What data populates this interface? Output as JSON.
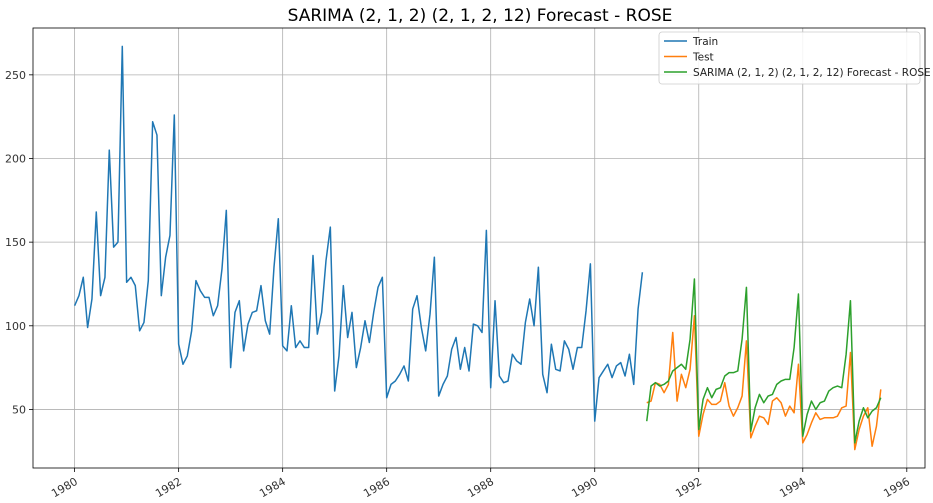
{
  "chart_data": {
    "type": "line",
    "title": "SARIMA (2, 1, 2) (2, 1, 2, 12) Forecast - ROSE",
    "xlabel": "",
    "ylabel": "",
    "xlim": [
      1979.2,
      1996.35
    ],
    "ylim": [
      15,
      278
    ],
    "x_ticks": [
      1980,
      1982,
      1984,
      1986,
      1988,
      1990,
      1992,
      1994,
      1996
    ],
    "x_tick_labels": [
      "1980",
      "1982",
      "1984",
      "1986",
      "1988",
      "1990",
      "1992",
      "1994",
      "1996"
    ],
    "y_ticks": [
      50,
      100,
      150,
      200,
      250
    ],
    "y_tick_labels": [
      "50",
      "100",
      "150",
      "200",
      "250"
    ],
    "grid": true,
    "legend_position": "top-right",
    "series": [
      {
        "name": "Train",
        "color": "#1f77b4",
        "start_year": 1980,
        "values": [
          112,
          118,
          129,
          99,
          116,
          168,
          118,
          129,
          205,
          147,
          150,
          267,
          126,
          129,
          124,
          97,
          102,
          127,
          222,
          214,
          118,
          141,
          154,
          226,
          89,
          77,
          82,
          97,
          127,
          121,
          117,
          117,
          106,
          112,
          134,
          169,
          75,
          108,
          115,
          85,
          101,
          108,
          109,
          124,
          103,
          95,
          135,
          164,
          88,
          85,
          112,
          87,
          91,
          87,
          87,
          142,
          95,
          108,
          139,
          159,
          61,
          82,
          124,
          93,
          108,
          75,
          87,
          103,
          90,
          108,
          123,
          129,
          57,
          65,
          67,
          71,
          76,
          67,
          110,
          118,
          99,
          85,
          107,
          141,
          58,
          65,
          70,
          86,
          93,
          74,
          87,
          73,
          101,
          100,
          96,
          157,
          63,
          115,
          70,
          66,
          67,
          83,
          79,
          77,
          102,
          116,
          100,
          135,
          71,
          60,
          89,
          74,
          73,
          91,
          86,
          74,
          87,
          87,
          109,
          137,
          43,
          69,
          73,
          77,
          69,
          76,
          78,
          70,
          83,
          65,
          110,
          132
        ]
      },
      {
        "name": "Test",
        "color": "#ff7f0e",
        "start_year": 1991,
        "values": [
          54,
          55,
          66,
          65,
          60,
          65,
          96,
          55,
          71,
          63,
          74,
          106,
          34,
          47,
          56,
          53,
          53,
          55,
          66,
          52,
          46,
          51,
          58,
          91,
          33,
          40,
          46,
          45,
          41,
          55,
          57,
          54,
          46,
          52,
          48,
          77,
          30,
          35,
          42,
          48,
          44,
          45,
          45,
          45,
          46,
          51,
          52,
          84,
          26,
          38,
          46,
          51,
          28,
          40,
          62
        ]
      },
      {
        "name": "SARIMA (2, 1, 2) (2, 1, 2, 12) Forecast - ROSE",
        "color": "#2ca02c",
        "start_year": 1991,
        "values": [
          43,
          64,
          66,
          64,
          65,
          67,
          73,
          75,
          77,
          74,
          92,
          128,
          38,
          56,
          63,
          57,
          62,
          63,
          70,
          72,
          72,
          73,
          92,
          123,
          37,
          51,
          59,
          54,
          58,
          59,
          65,
          67,
          68,
          68,
          87,
          119,
          34,
          47,
          55,
          50,
          54,
          55,
          61,
          63,
          64,
          63,
          83,
          115,
          30,
          43,
          51,
          45,
          49,
          51,
          57
        ]
      }
    ]
  }
}
